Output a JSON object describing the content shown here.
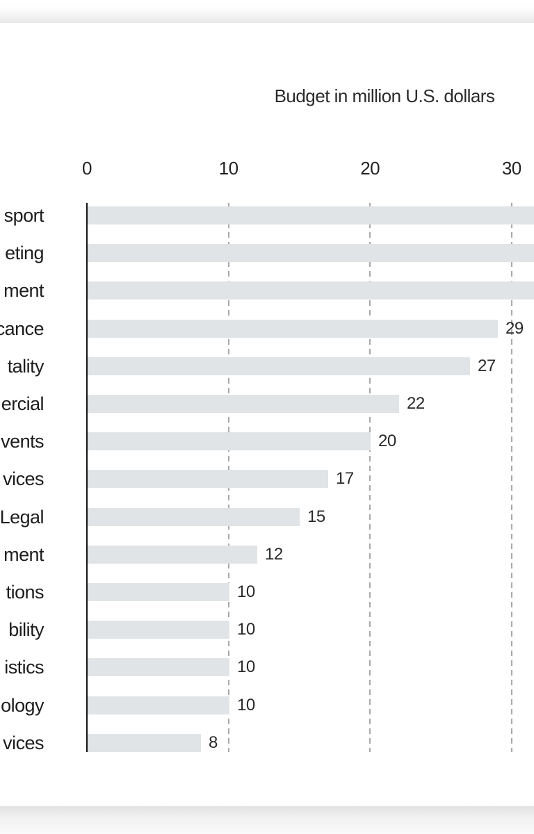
{
  "chart_data": {
    "type": "bar",
    "orientation": "horizontal",
    "title": "Budget in million U.S. dollars",
    "xlabel": "Budget in million U.S. dollars",
    "ylabel": "",
    "x_ticks": [
      0,
      10,
      20,
      30
    ],
    "xlim_visible": [
      0,
      31.6
    ],
    "grid": "dashed vertical gridlines at 10, 20, 30",
    "legend": "none",
    "labels_truncated_at_left_edge": true,
    "categories": [
      "sport",
      "eting",
      "ment",
      "cance",
      "tality",
      "ercial",
      "vents",
      "vices",
      "Legal",
      "ment",
      "tions",
      "bility",
      "istics",
      "ology",
      "vices"
    ],
    "values": [
      null,
      null,
      null,
      29,
      27,
      22,
      20,
      17,
      15,
      12,
      10,
      10,
      10,
      10,
      8
    ],
    "value_labels": [
      "",
      "",
      "",
      "29",
      "27",
      "22",
      "20",
      "17",
      "15",
      "12",
      "10",
      "10",
      "10",
      "10",
      "8"
    ],
    "bars_clipped_at_right_edge": [
      true,
      true,
      true,
      false,
      false,
      false,
      false,
      false,
      false,
      false,
      false,
      false,
      false,
      false,
      false
    ]
  },
  "colors": {
    "bar_fill": "#e0e4e7",
    "axis_line": "#161616",
    "gridline": "#a9a9a9",
    "text": "#222222",
    "card_background": "#ffffff",
    "edge_shadow": "#e2e2e2"
  }
}
